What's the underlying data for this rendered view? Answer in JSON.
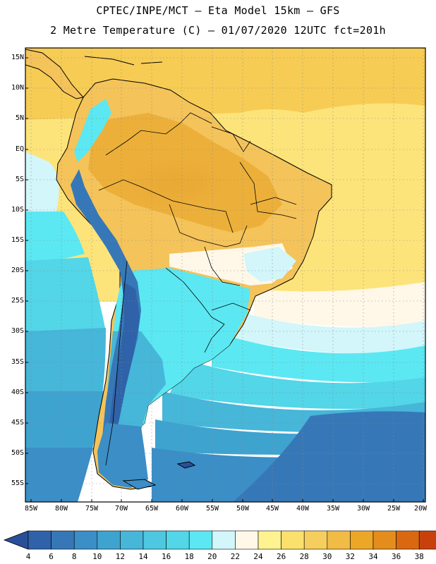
{
  "header": {
    "line1": "CPTEC/INPE/MCT –  Eta Model 15km – GFS",
    "line2": "2 Metre Temperature (C) – 01/07/2020 12UTC fct=201h"
  },
  "axes": {
    "lat_labels": [
      "15N",
      "10N",
      "5N",
      "EQ",
      "5S",
      "10S",
      "15S",
      "20S",
      "25S",
      "30S",
      "35S",
      "40S",
      "45S",
      "50S",
      "55S"
    ],
    "lon_labels": [
      "85W",
      "80W",
      "75W",
      "70W",
      "65W",
      "60W",
      "55W",
      "50W",
      "45W",
      "40W",
      "35W",
      "30W",
      "25W",
      "20W"
    ]
  },
  "colorbar": {
    "labels": [
      "4",
      "6",
      "8",
      "10",
      "12",
      "14",
      "16",
      "18",
      "20",
      "22",
      "24",
      "26",
      "28",
      "30",
      "32",
      "34",
      "36",
      "38"
    ],
    "colors": [
      "#2f62a8",
      "#3678b7",
      "#3b8ec6",
      "#3fa3cf",
      "#46b6d9",
      "#4ec8e0",
      "#52d6e8",
      "#5be8f2",
      "#d2f6fa",
      "#fff8e8",
      "#fff290",
      "#fbe06e",
      "#f6ce5e",
      "#f1bc46",
      "#eda727",
      "#e48d1d",
      "#d96810",
      "#c8410c"
    ],
    "under_color": "#2a4f9a",
    "over_color": "#b53508"
  }
}
